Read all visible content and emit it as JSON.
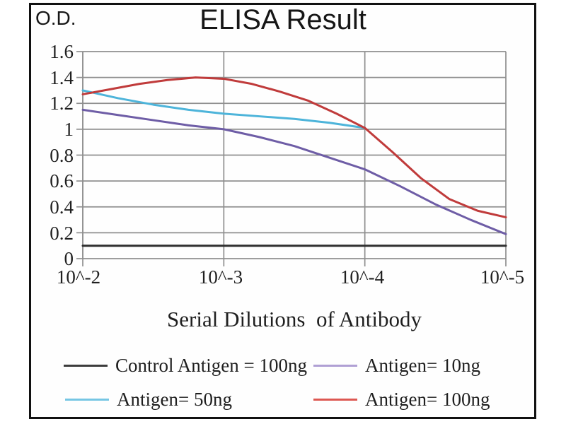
{
  "chart": {
    "od_label": "O.D.",
    "title": "ELISA Result"
  },
  "chart_data": {
    "type": "line",
    "title": "ELISA Result",
    "ylabel": "O.D.",
    "xlabel": "Serial Dilutions  of Antibody",
    "x_tick_labels": [
      "10^-2",
      "10^-3",
      "10^-4",
      "10^-5"
    ],
    "y_tick_labels": [
      "1.6",
      "1.4",
      "1.2",
      "1",
      "0.8",
      "0.6",
      "0.4",
      "0.2",
      "0"
    ],
    "ylim": [
      0,
      1.6
    ],
    "x_axis_type": "log10 exponent, -2 (left) to -5 (right)",
    "grid": true,
    "gridline_color": "#8f8f8f",
    "frame_color": "#111111",
    "legend_position": "bottom, 2 columns x 2 rows",
    "series": [
      {
        "name": "Control Antigen = 100ng",
        "color": "#2e2e2e",
        "legend_color": "#3c3c3c",
        "x": [
          -2,
          -5
        ],
        "y": [
          0.1,
          0.1
        ]
      },
      {
        "name": "Antigen= 10ng",
        "color": "#6e5da6",
        "legend_color": "#b0a0d4",
        "x": [
          -2,
          -2.25,
          -2.5,
          -2.75,
          -3,
          -3.25,
          -3.5,
          -3.75,
          -4,
          -4.25,
          -4.5,
          -4.75,
          -5
        ],
        "y": [
          1.15,
          1.11,
          1.07,
          1.03,
          1.0,
          0.94,
          0.87,
          0.78,
          0.69,
          0.56,
          0.42,
          0.3,
          0.19
        ]
      },
      {
        "name": "Antigen= 50ng",
        "color": "#4db4da",
        "legend_color": "#76c6e4",
        "x": [
          -2,
          -2.25,
          -2.5,
          -2.75,
          -3,
          -3.25,
          -3.5,
          -3.75,
          -4
        ],
        "y": [
          1.3,
          1.24,
          1.19,
          1.15,
          1.12,
          1.1,
          1.08,
          1.05,
          1.01
        ]
      },
      {
        "name": "Antigen= 100ng",
        "color": "#c03b3b",
        "legend_color": "#dd5852",
        "x": [
          -2,
          -2.2,
          -2.4,
          -2.6,
          -2.8,
          -3,
          -3.2,
          -3.4,
          -3.6,
          -3.8,
          -4,
          -4.2,
          -4.4,
          -4.6,
          -4.8,
          -5
        ],
        "y": [
          1.27,
          1.31,
          1.35,
          1.38,
          1.4,
          1.39,
          1.35,
          1.29,
          1.22,
          1.12,
          1.01,
          0.82,
          0.62,
          0.46,
          0.37,
          0.32
        ]
      }
    ]
  }
}
